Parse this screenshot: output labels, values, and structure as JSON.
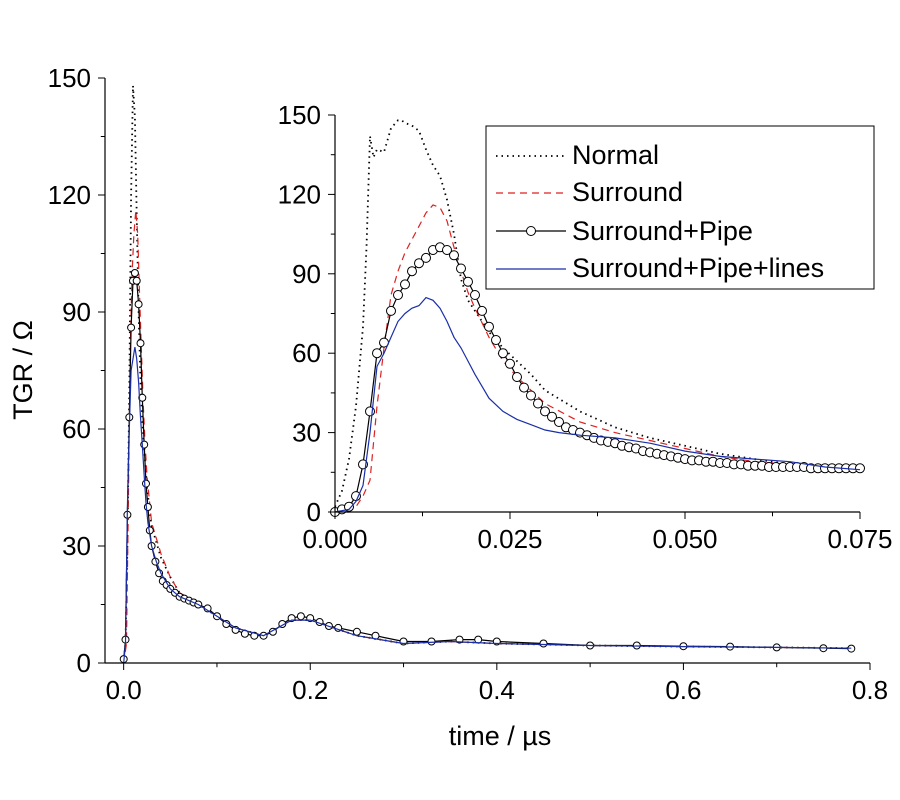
{
  "chart_data": [
    {
      "id": "main",
      "type": "line",
      "xlabel": "time / µs",
      "ylabel": "TGR / Ω",
      "xlim": [
        -0.02,
        0.8
      ],
      "ylim": [
        0,
        150
      ],
      "xticks": [
        0.0,
        0.2,
        0.4,
        0.6,
        0.8
      ],
      "xtick_labels": [
        "0.0",
        "0.2",
        "0.4",
        "0.6",
        "0.8"
      ],
      "yticks": [
        0,
        30,
        60,
        90,
        120,
        150
      ],
      "ytick_labels": [
        "0",
        "30",
        "60",
        "90",
        "120",
        "150"
      ],
      "series": [
        {
          "name": "Normal",
          "color": "#000000",
          "style": "dotted",
          "x": [
            0.0,
            0.002,
            0.004,
            0.006,
            0.008,
            0.01,
            0.012,
            0.014,
            0.016,
            0.018,
            0.02,
            0.022,
            0.025,
            0.03,
            0.04,
            0.05,
            0.06,
            0.08,
            0.1,
            0.12,
            0.15,
            0.18,
            0.2,
            0.25,
            0.3,
            0.35,
            0.4,
            0.5,
            0.6,
            0.7,
            0.78
          ],
          "y": [
            0,
            5,
            30,
            70,
            120,
            148,
            140,
            115,
            90,
            72,
            62,
            55,
            45,
            35,
            27,
            22,
            18,
            15,
            12,
            9,
            7,
            11,
            11,
            7,
            5,
            5.5,
            5,
            4.5,
            4.2,
            4,
            3.8
          ]
        },
        {
          "name": "Surround",
          "color": "#dd2222",
          "style": "dashed",
          "x": [
            0.0,
            0.003,
            0.005,
            0.007,
            0.009,
            0.011,
            0.013,
            0.015,
            0.017,
            0.019,
            0.021,
            0.023,
            0.025,
            0.03,
            0.04,
            0.05,
            0.06,
            0.08,
            0.1,
            0.12,
            0.15,
            0.18,
            0.2,
            0.25,
            0.3,
            0.35,
            0.4,
            0.5,
            0.6,
            0.7,
            0.78
          ],
          "y": [
            0,
            5,
            40,
            80,
            100,
            110,
            116,
            110,
            95,
            80,
            66,
            56,
            48,
            36,
            28,
            22,
            18,
            15,
            12,
            9,
            7,
            11,
            11,
            7,
            5,
            5.5,
            5,
            4.5,
            4.2,
            4,
            3.8
          ]
        },
        {
          "name": "Surround+Pipe",
          "color": "#000000",
          "style": "solid",
          "marker": "circle",
          "x": [
            0.0,
            0.002,
            0.004,
            0.006,
            0.008,
            0.01,
            0.012,
            0.014,
            0.016,
            0.018,
            0.02,
            0.022,
            0.024,
            0.026,
            0.028,
            0.03,
            0.034,
            0.038,
            0.042,
            0.046,
            0.05,
            0.055,
            0.06,
            0.065,
            0.07,
            0.075,
            0.08,
            0.09,
            0.1,
            0.11,
            0.12,
            0.13,
            0.14,
            0.15,
            0.16,
            0.17,
            0.18,
            0.19,
            0.2,
            0.21,
            0.22,
            0.23,
            0.25,
            0.27,
            0.3,
            0.33,
            0.36,
            0.38,
            0.4,
            0.45,
            0.5,
            0.55,
            0.6,
            0.65,
            0.7,
            0.75,
            0.78
          ],
          "y": [
            1,
            6,
            38,
            63,
            86,
            98,
            100,
            98,
            92,
            82,
            68,
            56,
            46,
            40,
            34,
            30,
            26,
            23,
            21,
            20,
            19,
            18,
            17,
            16.5,
            16,
            15.5,
            15,
            14,
            12,
            10,
            8.5,
            7.5,
            7,
            7,
            8,
            10,
            11.5,
            12,
            11.5,
            10.5,
            9.5,
            9,
            8,
            7,
            5.5,
            5.5,
            6,
            6,
            5.5,
            5,
            4.5,
            4.5,
            4.3,
            4.2,
            4,
            3.8,
            3.7
          ]
        },
        {
          "name": "Surround+Pipe+lines",
          "color": "#1a2fa8",
          "style": "solid",
          "x": [
            0.0,
            0.002,
            0.004,
            0.006,
            0.008,
            0.01,
            0.012,
            0.014,
            0.016,
            0.018,
            0.02,
            0.022,
            0.024,
            0.026,
            0.03,
            0.035,
            0.04,
            0.05,
            0.06,
            0.08,
            0.1,
            0.12,
            0.15,
            0.18,
            0.2,
            0.25,
            0.3,
            0.35,
            0.4,
            0.5,
            0.6,
            0.7,
            0.78
          ],
          "y": [
            0,
            5,
            40,
            60,
            75,
            78,
            81,
            78,
            72,
            63,
            56,
            48,
            41,
            36,
            30,
            26,
            23,
            19,
            17,
            15,
            12,
            9,
            7,
            11,
            11,
            7,
            5,
            5.5,
            5,
            4.5,
            4.2,
            4,
            3.8
          ]
        }
      ]
    },
    {
      "id": "inset",
      "type": "line",
      "xlim": [
        0.0,
        0.075
      ],
      "ylim": [
        0,
        150
      ],
      "xticks": [
        0.0,
        0.025,
        0.05,
        0.075
      ],
      "xtick_labels": [
        "0.000",
        "0.025",
        "0.050",
        "0.075"
      ],
      "yticks": [
        0,
        30,
        60,
        90,
        120,
        150
      ],
      "ytick_labels": [
        "0",
        "30",
        "60",
        "90",
        "120",
        "150"
      ],
      "legend": [
        "Normal",
        "Surround",
        "Surround+Pipe",
        "Surround+Pipe+lines"
      ],
      "legend_position": "top-right",
      "series": [
        {
          "name": "Normal",
          "color": "#000000",
          "style": "dotted",
          "x": [
            0.0,
            0.001,
            0.002,
            0.003,
            0.004,
            0.0045,
            0.005,
            0.0055,
            0.006,
            0.007,
            0.008,
            0.009,
            0.0095,
            0.01,
            0.011,
            0.012,
            0.013,
            0.014,
            0.015,
            0.016,
            0.017,
            0.018,
            0.019,
            0.02,
            0.022,
            0.024,
            0.026,
            0.028,
            0.03,
            0.035,
            0.04,
            0.045,
            0.05,
            0.055,
            0.06,
            0.065,
            0.07,
            0.075
          ],
          "y": [
            2,
            8,
            20,
            40,
            70,
            100,
            142,
            134,
            137,
            136,
            145,
            148,
            148,
            147,
            146,
            144,
            137,
            131,
            127,
            118,
            105,
            88,
            80,
            76,
            68,
            62,
            57,
            52,
            46,
            38,
            32,
            28,
            25,
            22,
            20,
            18,
            17,
            16
          ]
        },
        {
          "name": "Surround",
          "color": "#dd2222",
          "style": "dashed",
          "x": [
            0.0,
            0.002,
            0.003,
            0.004,
            0.005,
            0.006,
            0.007,
            0.008,
            0.009,
            0.01,
            0.011,
            0.012,
            0.013,
            0.014,
            0.015,
            0.016,
            0.017,
            0.018,
            0.019,
            0.02,
            0.022,
            0.024,
            0.026,
            0.028,
            0.03,
            0.035,
            0.04,
            0.045,
            0.05,
            0.055,
            0.06,
            0.065,
            0.07,
            0.075
          ],
          "y": [
            0,
            0,
            2,
            6,
            12,
            40,
            62,
            82,
            91,
            98,
            103,
            108,
            113,
            116,
            115,
            110,
            100,
            91,
            83,
            77,
            66,
            57,
            51,
            46,
            41,
            34,
            30,
            27,
            24,
            21,
            19,
            18,
            17,
            16
          ]
        },
        {
          "name": "Surround+Pipe",
          "color": "#000000",
          "style": "solid",
          "marker": "circle",
          "x": [
            0.0,
            0.001,
            0.002,
            0.003,
            0.004,
            0.005,
            0.006,
            0.007,
            0.008,
            0.009,
            0.01,
            0.011,
            0.012,
            0.013,
            0.014,
            0.015,
            0.016,
            0.017,
            0.018,
            0.019,
            0.02,
            0.021,
            0.022,
            0.023,
            0.024,
            0.025,
            0.026,
            0.027,
            0.028,
            0.029,
            0.03,
            0.031,
            0.032,
            0.033,
            0.034,
            0.035,
            0.036,
            0.037,
            0.038,
            0.039,
            0.04,
            0.041,
            0.042,
            0.043,
            0.044,
            0.045,
            0.046,
            0.047,
            0.048,
            0.049,
            0.05,
            0.051,
            0.052,
            0.053,
            0.054,
            0.055,
            0.056,
            0.057,
            0.058,
            0.059,
            0.06,
            0.061,
            0.062,
            0.063,
            0.064,
            0.065,
            0.066,
            0.067,
            0.068,
            0.069,
            0.07,
            0.071,
            0.072,
            0.073,
            0.074,
            0.075
          ],
          "y": [
            0,
            1,
            2,
            6,
            18,
            38,
            60,
            64,
            76,
            82,
            86,
            91,
            94,
            96,
            99,
            100,
            99,
            97,
            92,
            87,
            82,
            76,
            70,
            65,
            60,
            56,
            51,
            47,
            44,
            41,
            38,
            36,
            34,
            32,
            31,
            30,
            29,
            28,
            27,
            26.5,
            26,
            25,
            24.5,
            24,
            23,
            22.5,
            22,
            21.5,
            21,
            20.5,
            20,
            19.5,
            19.5,
            19,
            19,
            18.5,
            18.5,
            18,
            18,
            17.5,
            17.5,
            17.5,
            17,
            17,
            17,
            17,
            17,
            17,
            16.5,
            16.5,
            16.5,
            16.5,
            16.5,
            16.5,
            16.5,
            16.5
          ]
        },
        {
          "name": "Surround+Pipe+lines",
          "color": "#1a2fa8",
          "style": "solid",
          "x": [
            0.0,
            0.002,
            0.003,
            0.004,
            0.005,
            0.006,
            0.007,
            0.008,
            0.009,
            0.01,
            0.011,
            0.012,
            0.013,
            0.014,
            0.015,
            0.016,
            0.017,
            0.018,
            0.019,
            0.02,
            0.022,
            0.024,
            0.026,
            0.028,
            0.03,
            0.032,
            0.035,
            0.04,
            0.045,
            0.05,
            0.055,
            0.06,
            0.065,
            0.07,
            0.075
          ],
          "y": [
            0,
            1,
            4,
            10,
            30,
            55,
            60,
            66,
            72,
            75,
            77,
            78,
            81,
            80,
            77,
            72,
            66,
            62,
            57,
            52,
            43,
            38,
            35,
            33,
            31,
            30,
            29,
            28,
            26,
            23,
            21,
            20,
            19,
            17,
            16
          ]
        }
      ]
    }
  ]
}
